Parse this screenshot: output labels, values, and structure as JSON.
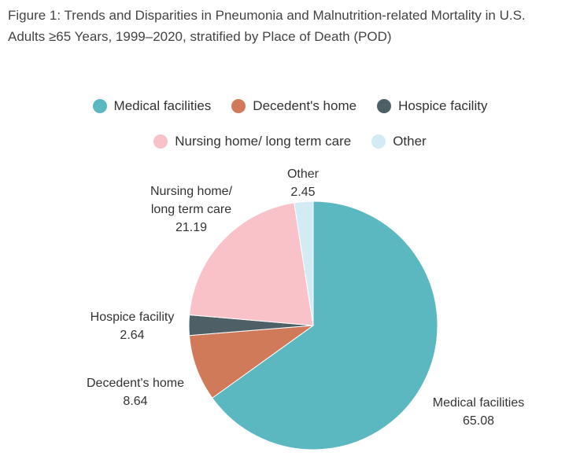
{
  "title_lines": [
    "Figure 1: Trends and Disparities in Pneumonia and Malnutrition-related Mortality in U.S.",
    "Adults ≥65 Years, 1999–2020, stratified by Place of Death (POD)"
  ],
  "chart_data": {
    "type": "pie",
    "title": "Figure 1: Trends and Disparities in Pneumonia and Malnutrition-related Mortality in U.S. Adults ≥65 Years, 1999–2020, stratified by Place of Death (POD)",
    "legend_placement": "top",
    "slices": [
      {
        "label": "Medical facilities",
        "value": 65.08,
        "value_text": "65.08",
        "label_lines": [
          "Medical facilities"
        ],
        "color": "#5bb8c1"
      },
      {
        "label": "Decedent's home",
        "value": 8.64,
        "value_text": "8.64",
        "label_lines": [
          "Decedent's home"
        ],
        "color": "#d17a5a"
      },
      {
        "label": "Hospice facility",
        "value": 2.64,
        "value_text": "2.64",
        "label_lines": [
          "Hospice facility"
        ],
        "color": "#4e5f66"
      },
      {
        "label": "Nursing home/ long term care",
        "value": 21.19,
        "value_text": "21.19",
        "label_lines": [
          "Nursing home/",
          "long term care"
        ],
        "color": "#f8c2c8"
      },
      {
        "label": "Other",
        "value": 2.45,
        "value_text": "2.45",
        "label_lines": [
          "Other"
        ],
        "color": "#d2ebf5"
      }
    ]
  }
}
